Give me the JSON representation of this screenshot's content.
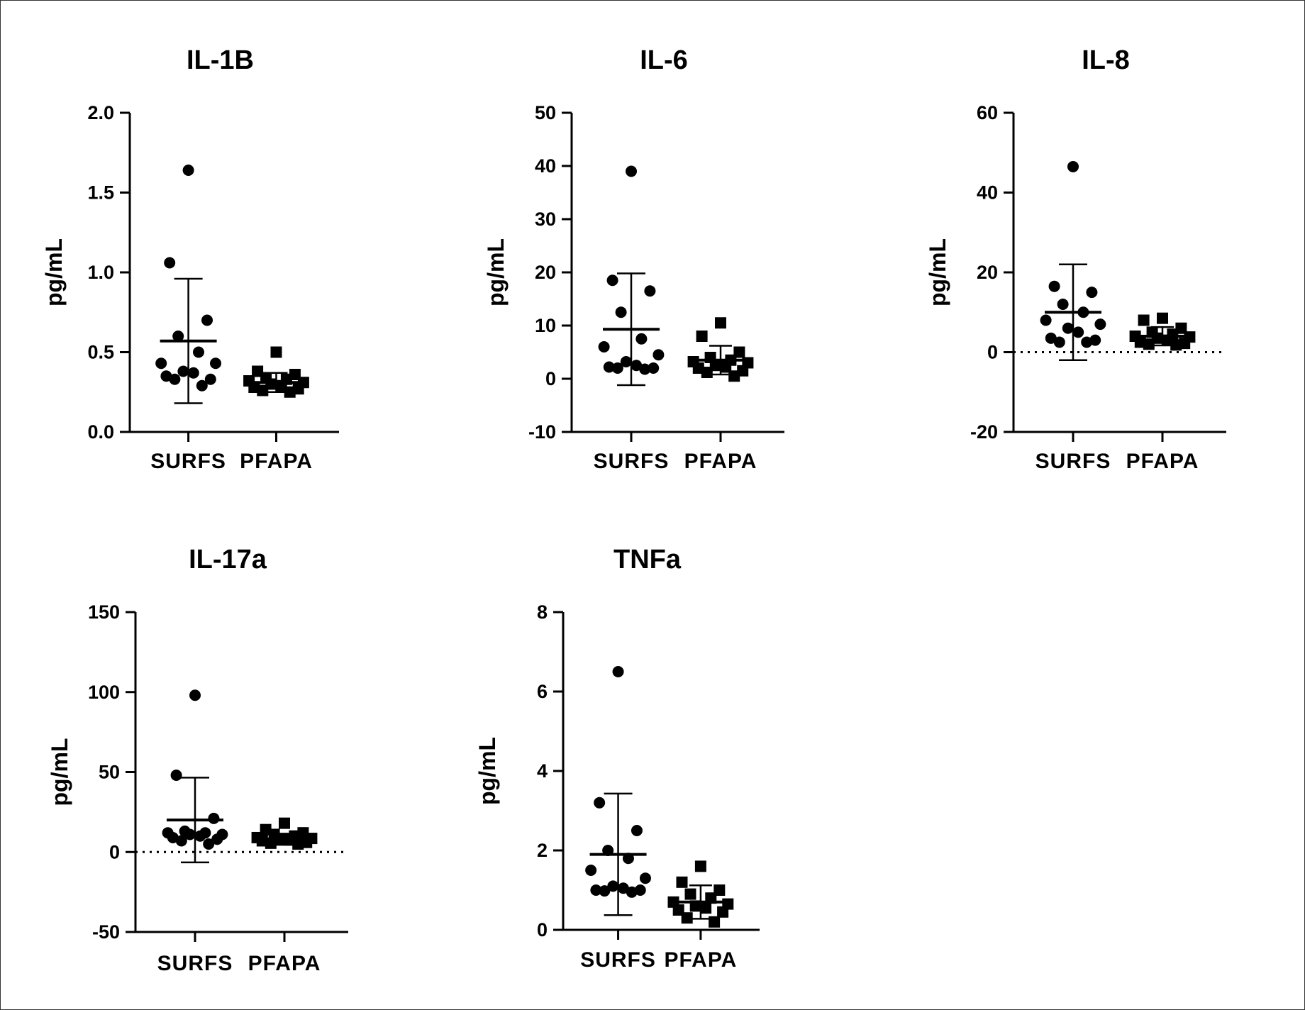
{
  "chart_data": [
    {
      "type": "scatter",
      "title": "IL-1B",
      "ylabel": "pg/mL",
      "ylim": [
        0,
        2
      ],
      "yticks": [
        0,
        0.5,
        1,
        1.5,
        2
      ],
      "ytick_labels": [
        "0.0",
        "0.5",
        "1.0",
        "1.5",
        "2.0"
      ],
      "categories": [
        "SURFS",
        "PFAPA"
      ],
      "zero_line": false,
      "series": [
        {
          "category": "SURFS",
          "marker": "circle",
          "values": [
            1.64,
            1.06,
            0.7,
            0.6,
            0.5,
            0.43,
            0.43,
            0.38,
            0.37,
            0.35,
            0.33,
            0.33,
            0.29
          ],
          "mean": 0.57,
          "sd": 0.39
        },
        {
          "category": "PFAPA",
          "marker": "square",
          "values": [
            0.5,
            0.38,
            0.36,
            0.34,
            0.33,
            0.32,
            0.31,
            0.3,
            0.29,
            0.28,
            0.27,
            0.26,
            0.25
          ],
          "mean": 0.31,
          "sd": 0.06
        }
      ]
    },
    {
      "type": "scatter",
      "title": "IL-6",
      "ylabel": "pg/mL",
      "ylim": [
        -10,
        50
      ],
      "yticks": [
        -10,
        0,
        10,
        20,
        30,
        40,
        50
      ],
      "ytick_labels": [
        "-10",
        "0",
        "10",
        "20",
        "30",
        "40",
        "50"
      ],
      "categories": [
        "SURFS",
        "PFAPA"
      ],
      "zero_line": false,
      "series": [
        {
          "category": "SURFS",
          "marker": "circle",
          "values": [
            39,
            18.5,
            16.5,
            12.5,
            7.5,
            6,
            4.5,
            3.2,
            2.5,
            2.2,
            2,
            2,
            1.8
          ],
          "mean": 9.3,
          "sd": 10.5
        },
        {
          "category": "PFAPA",
          "marker": "square",
          "values": [
            10.5,
            8,
            5,
            4,
            3.5,
            3.2,
            3,
            2.5,
            2.2,
            2,
            1.5,
            1.2,
            0.5
          ],
          "mean": 3.5,
          "sd": 2.7
        }
      ]
    },
    {
      "type": "scatter",
      "title": "IL-8",
      "ylabel": "pg/mL",
      "ylim": [
        -20,
        60
      ],
      "yticks": [
        -20,
        0,
        20,
        40,
        60
      ],
      "ytick_labels": [
        "-20",
        "0",
        "20",
        "40",
        "60"
      ],
      "categories": [
        "SURFS",
        "PFAPA"
      ],
      "zero_line": true,
      "series": [
        {
          "category": "SURFS",
          "marker": "circle",
          "values": [
            46.5,
            16.5,
            15,
            12,
            10,
            8,
            7,
            6,
            5,
            3.5,
            3,
            2.5,
            2.5
          ],
          "mean": 10,
          "sd": 12
        },
        {
          "category": "PFAPA",
          "marker": "square",
          "values": [
            8.5,
            8,
            6,
            5,
            4.5,
            4,
            3.8,
            3.5,
            3,
            2.5,
            2.2,
            2,
            1.8
          ],
          "mean": 4,
          "sd": 2.3
        }
      ]
    },
    {
      "type": "scatter",
      "title": "IL-17a",
      "ylabel": "pg/mL",
      "ylim": [
        -50,
        150
      ],
      "yticks": [
        -50,
        0,
        50,
        100,
        150
      ],
      "ytick_labels": [
        "-50",
        "0",
        "50",
        "100",
        "150"
      ],
      "categories": [
        "SURFS",
        "PFAPA"
      ],
      "zero_line": true,
      "series": [
        {
          "category": "SURFS",
          "marker": "circle",
          "values": [
            98,
            48,
            21,
            13,
            12,
            12,
            11,
            11,
            10,
            9,
            8,
            7,
            5
          ],
          "mean": 20,
          "sd": 26.5
        },
        {
          "category": "PFAPA",
          "marker": "square",
          "values": [
            18,
            14,
            12,
            11,
            10,
            9,
            8.5,
            8,
            7.5,
            7,
            6,
            5.5,
            5
          ],
          "mean": 8,
          "sd": 3.5
        }
      ]
    },
    {
      "type": "scatter",
      "title": "TNFa",
      "ylabel": "pg/mL",
      "ylim": [
        0,
        8
      ],
      "yticks": [
        0,
        2,
        4,
        6,
        8
      ],
      "ytick_labels": [
        "0",
        "2",
        "4",
        "6",
        "8"
      ],
      "categories": [
        "SURFS",
        "PFAPA"
      ],
      "zero_line": false,
      "series": [
        {
          "category": "SURFS",
          "marker": "circle",
          "values": [
            6.5,
            3.2,
            2.5,
            2,
            1.8,
            1.5,
            1.3,
            1.1,
            1.05,
            1,
            1,
            0.98,
            0.95
          ],
          "mean": 1.9,
          "sd": 1.53
        },
        {
          "category": "PFAPA",
          "marker": "square",
          "values": [
            1.6,
            1.2,
            1,
            0.9,
            0.8,
            0.7,
            0.65,
            0.6,
            0.55,
            0.5,
            0.45,
            0.3,
            0.2
          ],
          "mean": 0.7,
          "sd": 0.42
        }
      ]
    }
  ]
}
